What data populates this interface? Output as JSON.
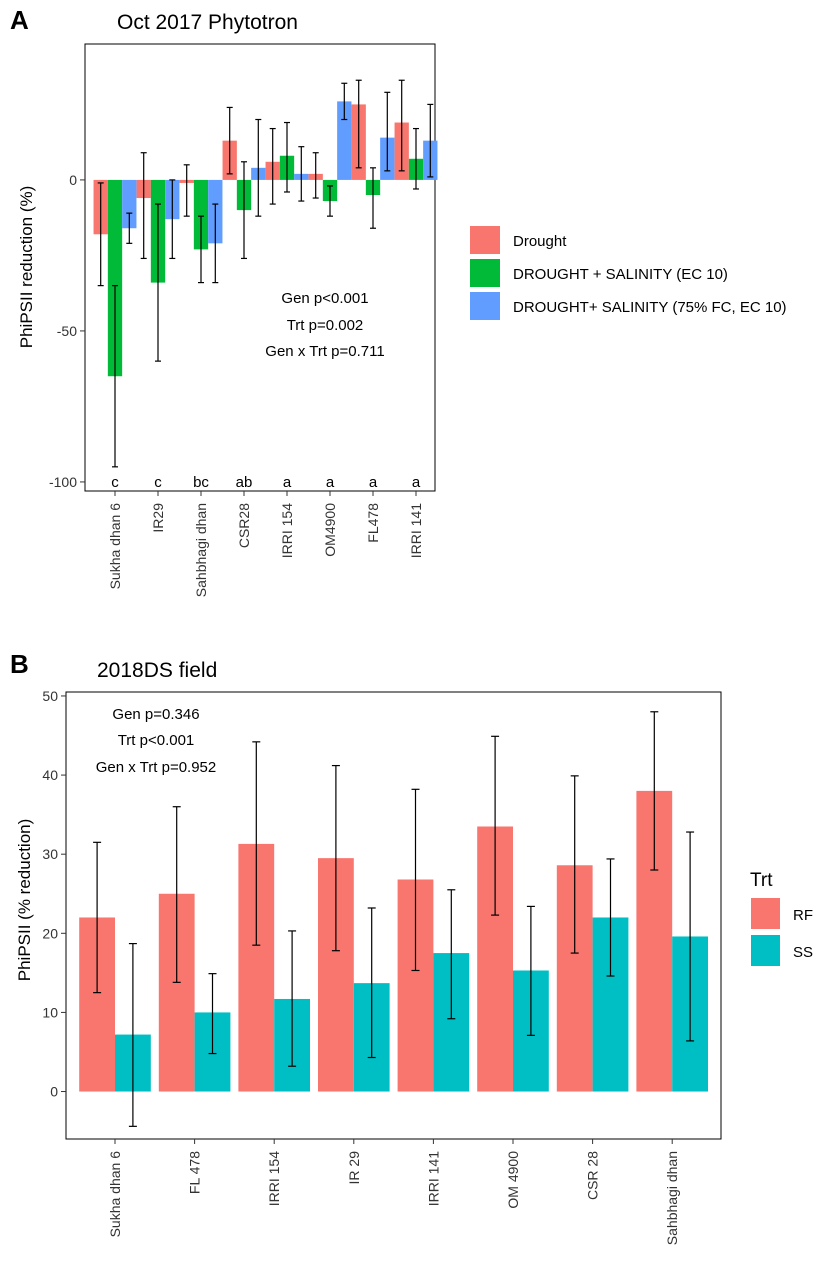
{
  "chart_data": [
    {
      "panel_label": "A",
      "type": "bar",
      "title": "Oct 2017 Phytotron",
      "xlabel": "",
      "ylabel": "PhiPSII reduction (%)",
      "ylim": [
        -103,
        45
      ],
      "yticks": [
        "0",
        "-50",
        "-100"
      ],
      "ytick_values": [
        0,
        -50,
        -100
      ],
      "categories": [
        "Sukha dhan 6",
        "IR29",
        "Sahbhagi dhan",
        "CSR28",
        "IRRI 154",
        "OM4900",
        "FL478",
        "IRRI 141"
      ],
      "significance_letters": [
        "c",
        "c",
        "bc",
        "ab",
        "a",
        "a",
        "a",
        "a"
      ],
      "significance_y": -100,
      "annotations": [
        "Gen p<0.001",
        "Trt p=0.002",
        "Gen x Trt p=0.711"
      ],
      "legend_title": "",
      "series": [
        {
          "name": "Drought",
          "color": "#F8766D",
          "values": [
            -18,
            -6,
            -1,
            13,
            6,
            2,
            25,
            19
          ],
          "err_low": [
            -35,
            -26,
            -12,
            2,
            -8,
            -6,
            4,
            3
          ],
          "err_high": [
            -1,
            9,
            5,
            24,
            17,
            9,
            33,
            33
          ]
        },
        {
          "name": "DROUGHT + SALINITY (EC 10)",
          "color": "#00BA38",
          "values": [
            -65,
            -34,
            -23,
            -10,
            8,
            -7,
            -5,
            7
          ],
          "err_low": [
            -95,
            -60,
            -34,
            -26,
            -4,
            -12,
            -16,
            -3
          ],
          "err_high": [
            -35,
            -8,
            -12,
            6,
            19,
            -2,
            4,
            17
          ]
        },
        {
          "name": "DROUGHT+ SALINITY (75% FC, EC 10)",
          "color": "#619CFF",
          "values": [
            -16,
            -13,
            -21,
            4,
            2,
            26,
            14,
            13
          ],
          "err_low": [
            -21,
            -26,
            -34,
            -12,
            -7,
            20,
            3,
            1
          ],
          "err_high": [
            -11,
            0,
            -8,
            20,
            11,
            32,
            29,
            25
          ]
        }
      ]
    },
    {
      "panel_label": "B",
      "type": "bar",
      "title": "2018DS field",
      "xlabel": "",
      "ylabel": "PhiPSII (% reduction)",
      "ylim": [
        -6,
        50.5
      ],
      "yticks": [
        "0",
        "10",
        "20",
        "30",
        "40",
        "50"
      ],
      "ytick_values": [
        0,
        10,
        20,
        30,
        40,
        50
      ],
      "categories": [
        "Sukha dhan 6",
        "FL 478",
        "IRRI 154",
        "IR 29",
        "IRRI 141",
        "OM 4900",
        "CSR 28",
        "Sahbhagi dhan"
      ],
      "annotations": [
        "Gen p=0.346",
        "Trt p<0.001",
        "Gen x Trt p=0.952"
      ],
      "legend_title": "Trt",
      "series": [
        {
          "name": "RF",
          "color": "#F8766D",
          "values": [
            22,
            25,
            31.3,
            29.5,
            26.8,
            33.5,
            28.6,
            38
          ],
          "err_low": [
            12.5,
            13.8,
            18.5,
            17.8,
            15.3,
            22.3,
            17.5,
            28
          ],
          "err_high": [
            31.5,
            36,
            44.2,
            41.2,
            38.2,
            44.9,
            39.9,
            48
          ]
        },
        {
          "name": "SS",
          "color": "#00BFC4",
          "values": [
            7.2,
            10,
            11.7,
            13.7,
            17.5,
            15.3,
            22,
            19.6
          ],
          "err_low": [
            -4.4,
            4.8,
            3.2,
            4.3,
            9.2,
            7.1,
            14.6,
            6.4
          ],
          "err_high": [
            18.7,
            14.9,
            20.3,
            23.2,
            25.5,
            23.4,
            29.4,
            32.8
          ]
        }
      ]
    }
  ]
}
